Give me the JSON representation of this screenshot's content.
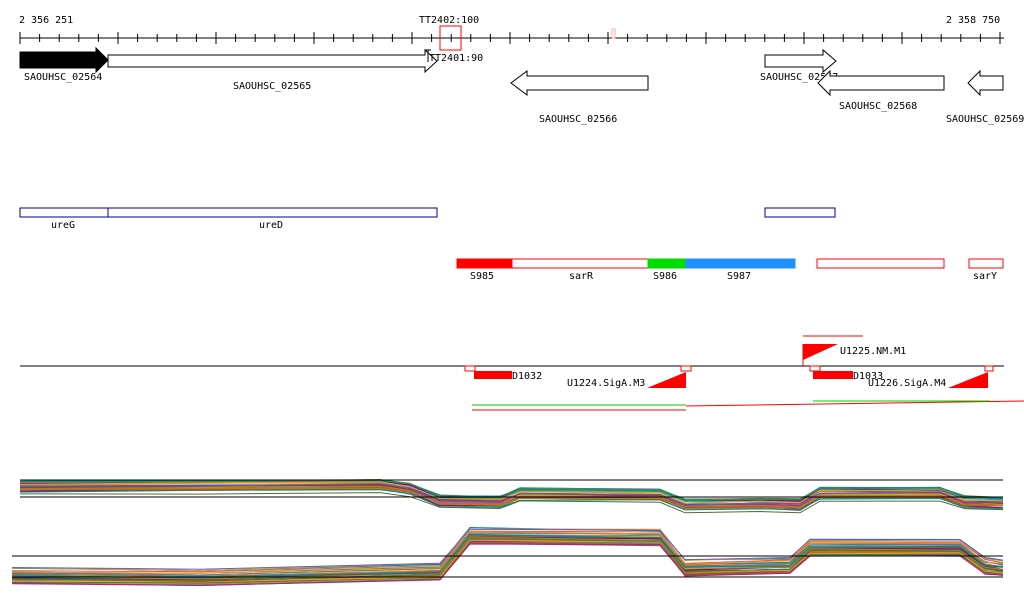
{
  "ruler": {
    "start_label": "2 356 251",
    "end_label": "2 358 750",
    "marker_label": "TT2402:100"
  },
  "genes": [
    {
      "name": "SAOUHSC_02564",
      "strand": "+",
      "filled": true
    },
    {
      "name": "SAOUHSC_02565",
      "strand": "+",
      "filled": false
    },
    {
      "name": "SAOUHSC_02566",
      "strand": "-",
      "filled": false
    },
    {
      "name": "SAOUHSC_02567",
      "strand": "+",
      "filled": false
    },
    {
      "name": "SAOUHSC_02568",
      "strand": "-",
      "filled": false
    },
    {
      "name": "SAOUHSC_02569",
      "strand": "-",
      "filled": false
    }
  ],
  "terminator_label": "TT2401:90",
  "operons": [
    {
      "name": "ureG"
    },
    {
      "name": "ureD"
    },
    {
      "name": ""
    }
  ],
  "srnas": [
    {
      "name": "S985",
      "color": "#ff0000",
      "filled": true
    },
    {
      "name": "sarR",
      "color": "#ff0000",
      "filled": false
    },
    {
      "name": "S986",
      "color": "#00dd00",
      "filled": true
    },
    {
      "name": "S987",
      "color": "#1e90ff",
      "filled": true
    },
    {
      "name": "",
      "color": "#ff0000",
      "filled": false
    },
    {
      "name": "sarY",
      "color": "#ff0000",
      "filled": false
    }
  ],
  "promoters": [
    {
      "name": "D1032"
    },
    {
      "name": "U1224.SigA.M3"
    },
    {
      "name": "U1225.NM.M1"
    },
    {
      "name": "D1033"
    },
    {
      "name": "U1226.SigA.M4"
    }
  ],
  "colors": {
    "gene_fill": "#000000",
    "operon": "#00008b",
    "promoter": "#ff0000",
    "green_line": "#00cc00"
  }
}
